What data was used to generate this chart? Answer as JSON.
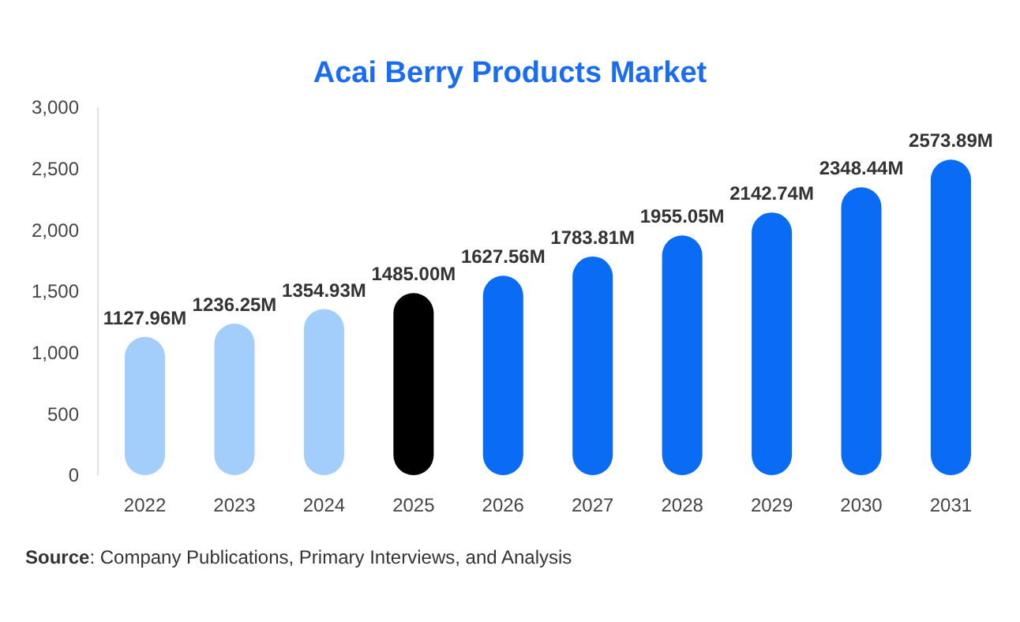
{
  "chart_data": {
    "type": "bar",
    "title": "Acai Berry Products Market",
    "categories": [
      "2022",
      "2023",
      "2024",
      "2025",
      "2026",
      "2027",
      "2028",
      "2029",
      "2030",
      "2031"
    ],
    "values": [
      1127.96,
      1236.25,
      1354.93,
      1485.0,
      1627.56,
      1783.81,
      1955.05,
      2142.74,
      2348.44,
      2573.89
    ],
    "colors": [
      "#a3cdfb",
      "#a3cdfb",
      "#a3cdfb",
      "#000000",
      "#0a6cf5",
      "#0a6cf5",
      "#0a6cf5",
      "#0a6cf5",
      "#0a6cf5",
      "#0a6cf5"
    ],
    "value_labels": [
      "1127.96M",
      "1236.25M",
      "1354.93M",
      "1485.00M",
      "1627.56M",
      "1783.81M",
      "1955.05M",
      "2142.74M",
      "2348.44M",
      "2573.89M"
    ],
    "ylim": [
      0,
      3000
    ],
    "yticks": [
      0,
      500,
      {
        "value": 1000,
        "label": "1,000"
      },
      {
        "value": 1500,
        "label": "1,500"
      },
      {
        "value": 2000,
        "label": "2,000"
      },
      {
        "value": 2500,
        "label": "2,500"
      },
      {
        "value": 3000,
        "label": "3,000"
      }
    ],
    "grid": false,
    "annotations": [
      "Source: Company Publications, Primary Interviews, and Analysis"
    ]
  }
}
